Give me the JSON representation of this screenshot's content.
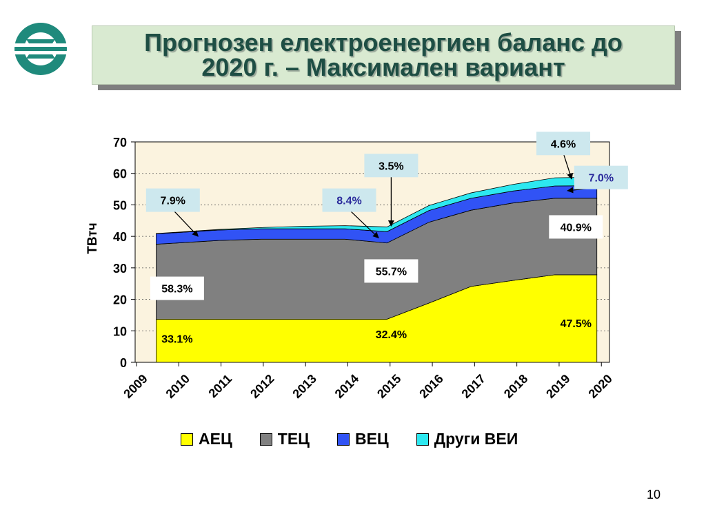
{
  "slide": {
    "title_line1": "Прогнозен електроенергиен баланс до",
    "title_line2": "2020 г. – Максимален вариант",
    "page_number": "10"
  },
  "colors": {
    "aec": "#ffff00",
    "tec": "#808080",
    "vec": "#3153f5",
    "other": "#2de8f0",
    "title_text": "#1e4e44",
    "title_bg": "#d9ead1",
    "plot_bg": "#fbf3df",
    "callout_bg": "#cde8ee"
  },
  "logo": {
    "icon": "company-logo-icon"
  },
  "chart_data": {
    "type": "area",
    "stacked": true,
    "title": "",
    "xlabel": "",
    "ylabel": "ТВтч",
    "ylim": [
      0,
      70
    ],
    "yticks": [
      0,
      10,
      20,
      30,
      40,
      50,
      60,
      70
    ],
    "x_tick_labels": [
      "2009",
      "2010",
      "2011",
      "2012",
      "2013",
      "2014",
      "2015",
      "2016",
      "2017",
      "2018",
      "2019",
      "2020"
    ],
    "x": [
      2010,
      2011,
      2012,
      2013,
      2014,
      2015,
      2016,
      2017,
      2018,
      2019,
      2020
    ],
    "series": [
      {
        "name": "АЕЦ",
        "values": [
          13.7,
          13.7,
          13.7,
          13.7,
          13.7,
          13.7,
          18.8,
          24.1,
          26.0,
          27.8,
          27.8
        ]
      },
      {
        "name": "ТЕЦ",
        "values": [
          23.8,
          25.0,
          25.4,
          25.4,
          25.4,
          24.2,
          25.7,
          24.2,
          24.6,
          24.3,
          24.3
        ]
      },
      {
        "name": "ВЕЦ",
        "values": [
          3.3,
          3.3,
          3.3,
          3.3,
          3.3,
          3.6,
          3.7,
          3.8,
          3.8,
          3.9,
          4.0
        ]
      },
      {
        "name": "Други ВЕИ",
        "values": [
          0.1,
          0.2,
          0.4,
          0.8,
          1.0,
          1.5,
          1.6,
          1.7,
          2.1,
          2.6,
          2.7
        ]
      }
    ],
    "annotations": [
      {
        "text": "33.1%",
        "series": "АЕЦ",
        "x": 2010.5,
        "y": 7.5,
        "boxed": false,
        "color": "#000000",
        "arrow_to": null
      },
      {
        "text": "32.4%",
        "series": "АЕЦ",
        "x": 2015.6,
        "y": 9,
        "boxed": false,
        "color": "#000000",
        "arrow_to": null
      },
      {
        "text": "47.5%",
        "series": "АЕЦ",
        "x": 2020.0,
        "y": 12.5,
        "boxed": false,
        "color": "#000000",
        "arrow_to": null
      },
      {
        "text": "58.3%",
        "series": "ТЕЦ",
        "x": 2010.5,
        "y": 23.5,
        "boxed": true,
        "color": "#000000",
        "arrow_to": null
      },
      {
        "text": "55.7%",
        "series": "ТЕЦ",
        "x": 2015.6,
        "y": 29,
        "boxed": true,
        "color": "#000000",
        "arrow_to": null
      },
      {
        "text": "40.9%",
        "series": "ТЕЦ",
        "x": 2020.0,
        "y": 43,
        "boxed": true,
        "color": "#000000",
        "arrow_to": null
      },
      {
        "text": "7.9%",
        "series": "ВЕЦ",
        "x": 2010.4,
        "y": 51.5,
        "boxed": true,
        "color": "#000000",
        "arrow_to": [
          2011.0,
          40.0
        ]
      },
      {
        "text": "8.4%",
        "series": "ВЕЦ",
        "x": 2014.6,
        "y": 51.5,
        "boxed": true,
        "color": "#2b2b9c",
        "arrow_to": [
          2015.3,
          39.5
        ]
      },
      {
        "text": "7.0%",
        "series": "ВЕЦ",
        "x": 2020.6,
        "y": 58.7,
        "boxed": true,
        "color": "#2b2b9c",
        "arrow_to": [
          2019.8,
          54.5
        ]
      },
      {
        "text": "3.5%",
        "series": "Други ВЕИ",
        "x": 2015.6,
        "y": 62.5,
        "boxed": true,
        "color": "#000000",
        "arrow_to": [
          2015.6,
          43.3
        ]
      },
      {
        "text": "4.6%",
        "series": "Други ВЕИ",
        "x": 2019.7,
        "y": 69.5,
        "boxed": true,
        "color": "#000000",
        "arrow_to": [
          2019.9,
          58.2
        ]
      }
    ],
    "legend_position": "bottom",
    "grid": true
  }
}
